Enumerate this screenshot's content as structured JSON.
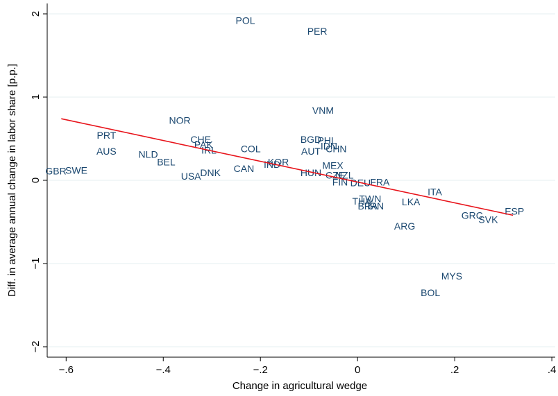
{
  "chart_data": {
    "type": "scatter",
    "x_label": "Change in agricultural wedge",
    "y_label": "Diff. in average annual change in labor share [p.p.]",
    "labels": [
      "POL",
      "PER",
      "VNM",
      "NOR",
      "PRT",
      "AUS",
      "CHE",
      "PAK",
      "IRL",
      "NLD",
      "BEL",
      "COL",
      "BGD",
      "PHL",
      "IDN",
      "AUT",
      "CHN",
      "KOR",
      "IND",
      "CAN",
      "GBR",
      "SWE",
      "USA",
      "DNK",
      "MEX",
      "HUN",
      "CZE",
      "NZL",
      "FIN",
      "DEU",
      "FRA",
      "ITA",
      "LKA",
      "TWN",
      "THA",
      "BRA",
      "IRN",
      "ARG",
      "GRC",
      "SVK",
      "ESP",
      "MYS",
      "BOL"
    ],
    "x": [
      -0.231,
      -0.083,
      -0.071,
      -0.366,
      -0.517,
      -0.517,
      -0.323,
      -0.317,
      -0.306,
      -0.431,
      -0.394,
      -0.22,
      -0.096,
      -0.063,
      -0.059,
      -0.096,
      -0.044,
      -0.163,
      -0.176,
      -0.234,
      -0.621,
      -0.579,
      -0.343,
      -0.303,
      -0.051,
      -0.096,
      -0.046,
      -0.027,
      -0.036,
      0.006,
      0.046,
      0.159,
      0.11,
      0.026,
      0.009,
      0.021,
      0.037,
      0.097,
      0.236,
      0.269,
      0.323,
      0.194,
      0.15
    ],
    "y": [
      1.91,
      1.78,
      0.83,
      0.71,
      0.53,
      0.34,
      0.48,
      0.42,
      0.35,
      0.3,
      0.21,
      0.37,
      0.48,
      0.47,
      0.4,
      0.34,
      0.37,
      0.21,
      0.18,
      0.13,
      0.1,
      0.11,
      0.04,
      0.08,
      0.17,
      0.08,
      0.05,
      0.05,
      -0.03,
      -0.04,
      -0.03,
      -0.15,
      -0.27,
      -0.23,
      -0.26,
      -0.32,
      -0.32,
      -0.56,
      -0.43,
      -0.48,
      -0.38,
      -1.16,
      -1.36
    ],
    "color": "#1a476f",
    "fit": {
      "x": [
        -0.61,
        0.32
      ],
      "y": [
        0.74,
        -0.42
      ],
      "color": "#e8141b"
    },
    "xlim": [
      -0.639,
      0.407
    ],
    "ylim": [
      -2.125,
      2.125
    ],
    "xticks": [
      {
        "value": -0.6,
        "label": "−.6"
      },
      {
        "value": -0.4,
        "label": "−.4"
      },
      {
        "value": -0.2,
        "label": "−.2"
      },
      0,
      {
        "value": 0.2,
        "label": ".2"
      },
      {
        "value": 0.4,
        "label": ".4"
      }
    ],
    "yticks": [
      {
        "value": -2,
        "label": "−2"
      },
      {
        "value": -1,
        "label": "−1"
      },
      0,
      1,
      2
    ],
    "grid": true
  }
}
